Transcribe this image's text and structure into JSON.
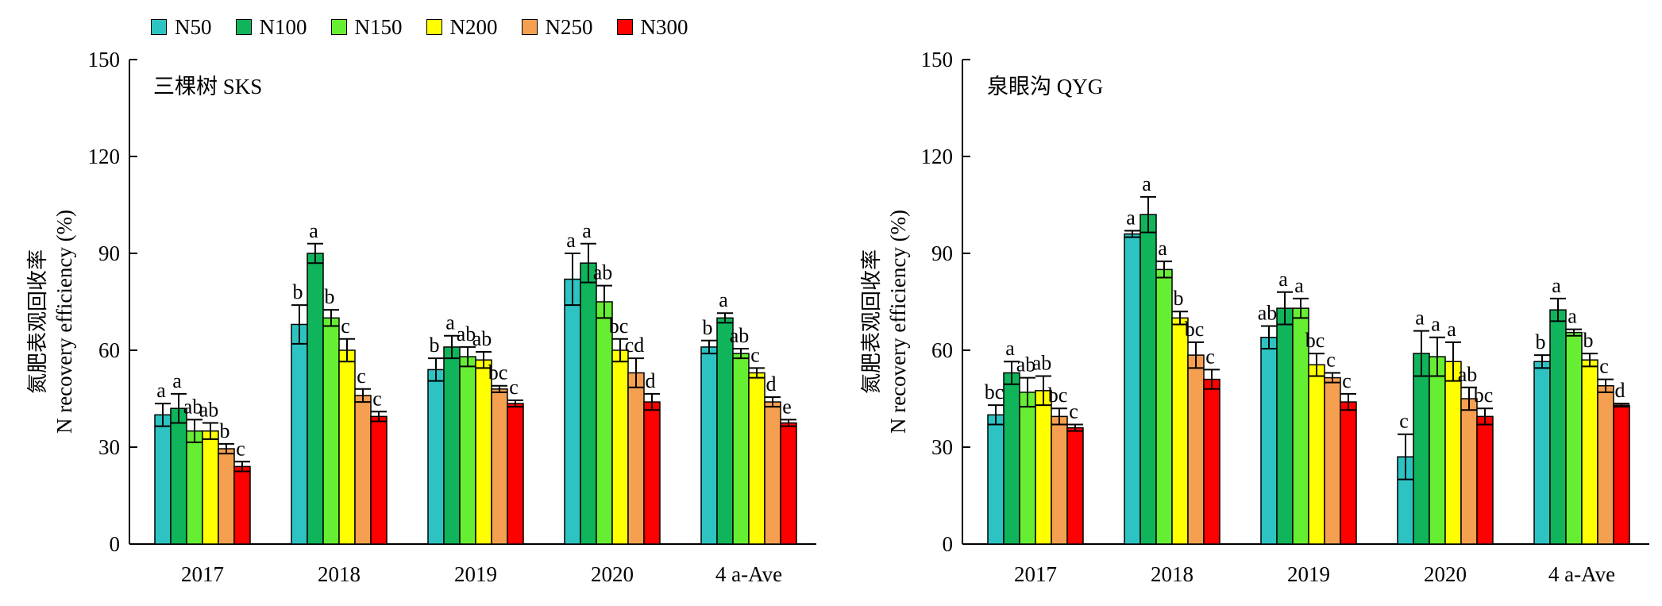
{
  "legend": [
    "N50",
    "N100",
    "N150",
    "N200",
    "N250",
    "N300"
  ],
  "colors": [
    "#2ec3c3",
    "#10b45a",
    "#66ee33",
    "#ffff00",
    "#f5a050",
    "#ff0000"
  ],
  "chart_data": [
    {
      "type": "bar",
      "title": "三棵树 SKS",
      "ylabel_cn": "氮肥表观回收率",
      "ylabel_en": "N recovery efficiency (%)",
      "ylim": [
        0,
        150
      ],
      "yticks": [
        0,
        30,
        60,
        90,
        120,
        150
      ],
      "categories": [
        "2017",
        "2018",
        "2019",
        "2020",
        "4 a-Ave"
      ],
      "series": [
        {
          "name": "N50",
          "values": [
            40,
            68,
            54,
            82,
            61
          ],
          "errors": [
            3.5,
            6,
            3.5,
            8,
            2
          ],
          "letters": [
            "a",
            "b",
            "b",
            "a",
            "b"
          ]
        },
        {
          "name": "N100",
          "values": [
            42,
            90,
            61,
            87,
            70
          ],
          "errors": [
            4.5,
            3,
            3.5,
            6,
            1.5
          ],
          "letters": [
            "a",
            "a",
            "a",
            "a",
            "a"
          ]
        },
        {
          "name": "N150",
          "values": [
            35,
            70,
            58,
            75,
            59
          ],
          "errors": [
            3.5,
            2.5,
            3,
            5,
            1.5
          ],
          "letters": [
            "ab",
            "b",
            "ab",
            "ab",
            "ab"
          ]
        },
        {
          "name": "N200",
          "values": [
            35,
            60,
            57,
            60,
            53
          ],
          "errors": [
            2.5,
            3.5,
            2.5,
            3.5,
            1.5
          ],
          "letters": [
            "ab",
            "c",
            "ab",
            "bc",
            "c"
          ]
        },
        {
          "name": "N250",
          "values": [
            29.5,
            46,
            48,
            53,
            44
          ],
          "errors": [
            1.5,
            2,
            1,
            4.5,
            1.5
          ],
          "letters": [
            "b",
            "c",
            "bc",
            "cd",
            "d"
          ]
        },
        {
          "name": "N300",
          "values": [
            24,
            39.5,
            43.5,
            44,
            37.5
          ],
          "errors": [
            1.5,
            1.5,
            1,
            2.5,
            1
          ],
          "letters": [
            "c",
            "c",
            "c",
            "d",
            "e"
          ]
        }
      ]
    },
    {
      "type": "bar",
      "title": "泉眼沟 QYG",
      "ylabel_cn": "氮肥表观回收率",
      "ylabel_en": "N recovery efficiency (%)",
      "ylim": [
        0,
        150
      ],
      "yticks": [
        0,
        30,
        60,
        90,
        120,
        150
      ],
      "categories": [
        "2017",
        "2018",
        "2019",
        "2020",
        "4 a-Ave"
      ],
      "series": [
        {
          "name": "N50",
          "values": [
            40,
            96,
            64,
            27,
            56.5
          ],
          "errors": [
            3,
            1,
            3.5,
            7,
            2
          ],
          "letters": [
            "bc",
            "a",
            "ab",
            "c",
            "b"
          ]
        },
        {
          "name": "N100",
          "values": [
            53,
            102,
            73,
            59,
            72.5
          ],
          "errors": [
            3.5,
            5.5,
            5,
            7,
            3.5
          ],
          "letters": [
            "a",
            "a",
            "a",
            "a",
            "a"
          ]
        },
        {
          "name": "N150",
          "values": [
            47,
            85,
            73,
            58,
            65.5
          ],
          "errors": [
            4.5,
            2.5,
            3,
            6,
            1
          ],
          "letters": [
            "ab",
            "a",
            "a",
            "a",
            "a"
          ]
        },
        {
          "name": "N200",
          "values": [
            47.5,
            70,
            55.5,
            56.5,
            57
          ],
          "errors": [
            4.5,
            2,
            3.5,
            6,
            2
          ],
          "letters": [
            "ab",
            "b",
            "bc",
            "a",
            "b"
          ]
        },
        {
          "name": "N250",
          "values": [
            39.5,
            58.5,
            51.5,
            45,
            49
          ],
          "errors": [
            2.5,
            4,
            1.5,
            3.5,
            2
          ],
          "letters": [
            "bc",
            "bc",
            "c",
            "ab",
            "c"
          ]
        },
        {
          "name": "N300",
          "values": [
            36,
            51,
            44,
            39.5,
            43
          ],
          "errors": [
            1,
            3,
            2.5,
            2.5,
            0.5
          ],
          "letters": [
            "c",
            "c",
            "c",
            "bc",
            "d"
          ]
        }
      ]
    }
  ]
}
